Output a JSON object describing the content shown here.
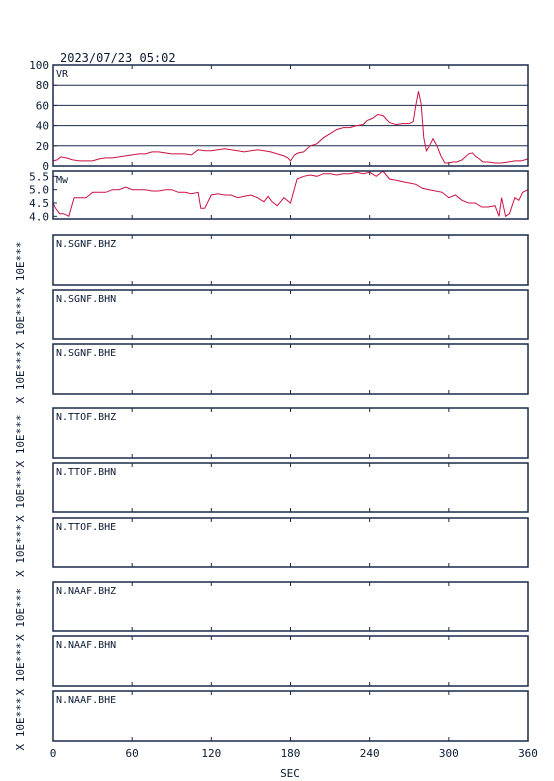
{
  "header": {
    "timestamp": "2023/07/23 05:02"
  },
  "colors": {
    "frame": "#1a2a4a",
    "trace": "#cc1144",
    "grid": "#1a2a4a"
  },
  "x_axis": {
    "label": "SEC",
    "ticks": [
      0,
      60,
      120,
      180,
      240,
      300,
      360
    ],
    "range": [
      0,
      360
    ]
  },
  "chart_data": [
    {
      "type": "line",
      "title": "",
      "panel_label": "VR",
      "xlabel": "SEC",
      "ylabel": "",
      "xlim": [
        0,
        360
      ],
      "ylim": [
        0,
        100
      ],
      "yticks": [
        0,
        20,
        40,
        60,
        80,
        100
      ],
      "grid": true,
      "series": [
        {
          "x": [
            0,
            3,
            6,
            10,
            15,
            20,
            25,
            30,
            35,
            40,
            45,
            50,
            55,
            60,
            65,
            70,
            75,
            80,
            85,
            90,
            95,
            100,
            105,
            110,
            115,
            120,
            125,
            130,
            135,
            140,
            145,
            150,
            155,
            160,
            165,
            170,
            175,
            178,
            180,
            183,
            186,
            190,
            195,
            200,
            205,
            210,
            215,
            220,
            225,
            230,
            235,
            238,
            242,
            246,
            250,
            255,
            260,
            265,
            270,
            273,
            275,
            277,
            279,
            281,
            283,
            285,
            288,
            291,
            294,
            297,
            300,
            303,
            306,
            310,
            315,
            318,
            320,
            323,
            326,
            330,
            335,
            340,
            345,
            350,
            355,
            360
          ],
          "y": [
            5,
            6,
            9,
            8,
            6,
            5,
            5,
            5,
            7,
            8,
            8,
            9,
            10,
            11,
            12,
            12,
            14,
            14,
            13,
            12,
            12,
            12,
            11,
            16,
            15,
            15,
            16,
            17,
            16,
            15,
            14,
            15,
            16,
            15,
            14,
            12,
            10,
            8,
            5,
            11,
            13,
            14,
            20,
            22,
            28,
            32,
            36,
            38,
            38,
            40,
            41,
            45,
            47,
            51,
            50,
            43,
            41,
            42,
            42,
            44,
            60,
            74,
            62,
            28,
            15,
            19,
            27,
            20,
            10,
            3,
            3,
            4,
            4,
            6,
            12,
            13,
            10,
            7,
            4,
            4,
            3,
            3,
            4,
            5,
            5,
            7
          ]
        }
      ]
    },
    {
      "type": "line",
      "title": "",
      "panel_label": "Mw",
      "xlabel": "SEC",
      "ylabel": "",
      "xlim": [
        0,
        360
      ],
      "ylim": [
        3.9,
        5.7
      ],
      "yticks": [
        4.0,
        4.5,
        5.0,
        5.5
      ],
      "grid": false,
      "series": [
        {
          "x": [
            0,
            2,
            5,
            8,
            12,
            16,
            20,
            25,
            30,
            35,
            40,
            45,
            50,
            55,
            60,
            65,
            70,
            75,
            80,
            85,
            90,
            95,
            100,
            105,
            110,
            112,
            115,
            120,
            125,
            130,
            135,
            140,
            145,
            150,
            155,
            158,
            160,
            163,
            166,
            170,
            175,
            180,
            185,
            190,
            195,
            200,
            205,
            210,
            215,
            220,
            225,
            230,
            235,
            240,
            245,
            250,
            255,
            260,
            265,
            270,
            275,
            280,
            285,
            290,
            295,
            300,
            305,
            310,
            315,
            320,
            325,
            330,
            335,
            338,
            340,
            343,
            346,
            350,
            353,
            356,
            360
          ],
          "y": [
            4.5,
            4.3,
            4.1,
            4.1,
            4.0,
            4.7,
            4.7,
            4.7,
            4.9,
            4.9,
            4.9,
            5.0,
            5.0,
            5.1,
            5.0,
            5.0,
            5.0,
            4.95,
            4.95,
            5.0,
            5.0,
            4.9,
            4.9,
            4.85,
            4.9,
            4.3,
            4.3,
            4.8,
            4.85,
            4.8,
            4.8,
            4.7,
            4.75,
            4.8,
            4.7,
            4.6,
            4.55,
            4.75,
            4.55,
            4.4,
            4.7,
            4.5,
            5.4,
            5.5,
            5.55,
            5.5,
            5.6,
            5.6,
            5.55,
            5.6,
            5.6,
            5.65,
            5.6,
            5.65,
            5.5,
            5.7,
            5.4,
            5.35,
            5.3,
            5.25,
            5.2,
            5.05,
            5.0,
            4.95,
            4.9,
            4.7,
            4.8,
            4.6,
            4.5,
            4.5,
            4.35,
            4.35,
            4.4,
            4.0,
            4.7,
            4.0,
            4.1,
            4.7,
            4.6,
            4.9,
            5.0
          ]
        }
      ]
    },
    {
      "type": "line",
      "title": "",
      "panel_label": "N.SGNF.BHZ",
      "ylabel": "X 10E***",
      "xlim": [
        0,
        360
      ],
      "series": []
    },
    {
      "type": "line",
      "title": "",
      "panel_label": "N.SGNF.BHN",
      "ylabel": "X 10E***",
      "xlim": [
        0,
        360
      ],
      "series": []
    },
    {
      "type": "line",
      "title": "",
      "panel_label": "N.SGNF.BHE",
      "ylabel": "X 10E***",
      "xlim": [
        0,
        360
      ],
      "series": []
    },
    {
      "type": "line",
      "title": "",
      "panel_label": "N.TTOF.BHZ",
      "ylabel": "X 10E***",
      "xlim": [
        0,
        360
      ],
      "series": []
    },
    {
      "type": "line",
      "title": "",
      "panel_label": "N.TTOF.BHN",
      "ylabel": "X 10E***",
      "xlim": [
        0,
        360
      ],
      "series": []
    },
    {
      "type": "line",
      "title": "",
      "panel_label": "N.TTOF.BHE",
      "ylabel": "X 10E***",
      "xlim": [
        0,
        360
      ],
      "series": []
    },
    {
      "type": "line",
      "title": "",
      "panel_label": "N.NAAF.BHZ",
      "ylabel": "X 10E***",
      "xlim": [
        0,
        360
      ],
      "series": []
    },
    {
      "type": "line",
      "title": "",
      "panel_label": "N.NAAF.BHN",
      "ylabel": "X 10E***",
      "xlim": [
        0,
        360
      ],
      "series": []
    },
    {
      "type": "line",
      "title": "",
      "panel_label": "N.NAAF.BHE",
      "ylabel": "X 10E***",
      "xlim": [
        0,
        360
      ],
      "series": []
    }
  ]
}
